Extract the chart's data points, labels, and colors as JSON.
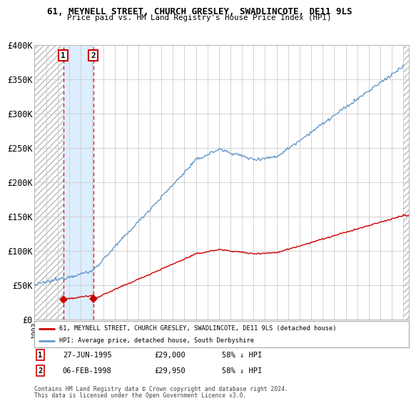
{
  "title": "61, MEYNELL STREET, CHURCH GRESLEY, SWADLINCOTE, DE11 9LS",
  "subtitle": "Price paid vs. HM Land Registry's House Price Index (HPI)",
  "xmin": 1993.0,
  "xmax": 2025.5,
  "ymin": 0,
  "ymax": 400000,
  "purchase1_year": 1995.49,
  "purchase2_year": 1998.09,
  "purchase1_price": 29000,
  "purchase2_price": 29950,
  "purchase1_label": "27-JUN-1995",
  "purchase2_label": "06-FEB-1998",
  "purchase1_pct": "58% ↓ HPI",
  "purchase2_pct": "58% ↓ HPI",
  "legend_line1": "61, MEYNELL STREET, CHURCH GRESLEY, SWADLINCOTE, DE11 9LS (detached house)",
  "legend_line2": "HPI: Average price, detached house, South Derbyshire",
  "footer1": "Contains HM Land Registry data © Crown copyright and database right 2024.",
  "footer2": "This data is licensed under the Open Government Licence v3.0.",
  "red_color": "#cc0000",
  "blue_color": "#6699cc",
  "bg_color": "#ffffff",
  "grid_color": "#cccccc",
  "shade1_color": "#ddeeff",
  "yticks": [
    0,
    50000,
    100000,
    150000,
    200000,
    250000,
    300000,
    350000,
    400000
  ],
  "ytick_labels": [
    "£0",
    "£50K",
    "£100K",
    "£150K",
    "£200K",
    "£250K",
    "£300K",
    "£350K",
    "£400K"
  ]
}
